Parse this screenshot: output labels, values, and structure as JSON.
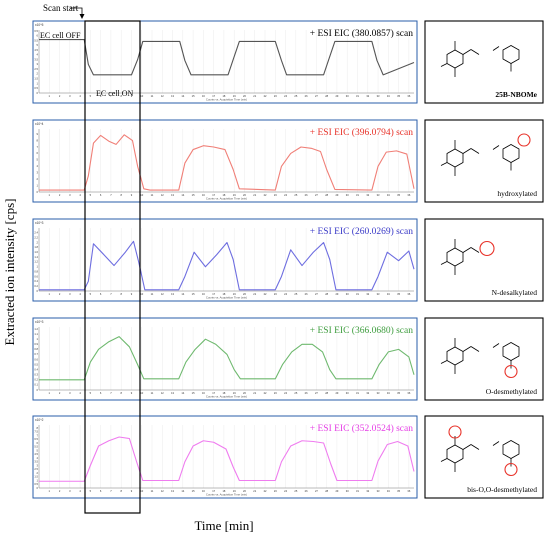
{
  "figure": {
    "annotation_scan_start": "Scan start",
    "annotation_cell_off": "EC cell OFF",
    "annotation_cell_on": "EC cell ON",
    "ylabel": "Extracted ion intensity [cps]",
    "xlabel": "Time [min]",
    "panel_axis_caption": "Counts vs. Acquisition Time (min)"
  },
  "chart_data": [
    {
      "type": "line",
      "title": "+ ESI EIC (380.0857) scan",
      "title_color": "#000000",
      "line_color": "#555555",
      "y_multiplier_label": "x10^5",
      "ylim": [
        0,
        6.6
      ],
      "yticks": [
        0,
        0.5,
        1,
        1.5,
        2,
        2.5,
        3,
        3.5,
        4,
        4.5,
        5,
        5.5,
        6,
        6.5
      ],
      "xlim": [
        0,
        36.5
      ],
      "xticks": [
        1,
        2,
        3,
        4,
        5,
        6,
        7,
        8,
        9,
        10,
        11,
        12,
        13,
        14,
        15,
        16,
        17,
        18,
        19,
        20,
        21,
        22,
        23,
        24,
        25,
        26,
        27,
        28,
        29,
        30,
        31,
        32,
        33,
        34,
        35,
        36
      ],
      "x": [
        0,
        4.4,
        4.8,
        5.3,
        9.0,
        9.6,
        10.1,
        13.7,
        14.2,
        14.8,
        18.4,
        18.9,
        19.5,
        23.0,
        23.6,
        24.1,
        27.7,
        28.2,
        28.8,
        32.4,
        32.9,
        33.5,
        36.5
      ],
      "y": [
        5.6,
        5.6,
        3.0,
        1.9,
        1.9,
        3.5,
        5.4,
        5.4,
        3.4,
        1.9,
        1.9,
        3.5,
        5.4,
        5.4,
        3.4,
        1.9,
        1.9,
        3.5,
        5.4,
        5.4,
        3.4,
        1.9,
        3.2
      ],
      "structure_label": "25B-NBOMe",
      "structure_label_bold": true,
      "structure_highlight": "none"
    },
    {
      "type": "line",
      "title": "+ ESI EIC (396.0794) scan",
      "title_color": "#e8332a",
      "line_color": "#f07f77",
      "y_multiplier_label": "x10^4",
      "ylim": [
        0,
        9.8
      ],
      "yticks": [
        0,
        1,
        2,
        3,
        4,
        5,
        6,
        7,
        8,
        9
      ],
      "xlim": [
        0,
        36.5
      ],
      "xticks": [
        1,
        2,
        3,
        4,
        5,
        6,
        7,
        8,
        9,
        10,
        11,
        12,
        13,
        14,
        15,
        16,
        17,
        18,
        19,
        20,
        21,
        22,
        23,
        24,
        25,
        26,
        27,
        28,
        29,
        30,
        31,
        32,
        33,
        34,
        35,
        36
      ],
      "x": [
        0,
        4.4,
        4.8,
        5.3,
        6.0,
        6.8,
        7.5,
        8.3,
        9.1,
        9.6,
        10.2,
        10.8,
        13.6,
        14.2,
        15.0,
        16.0,
        17.0,
        18.1,
        18.9,
        19.5,
        23.0,
        23.6,
        24.5,
        25.5,
        26.5,
        27.4,
        28.0,
        28.8,
        32.4,
        33.0,
        33.8,
        34.8,
        35.8,
        36.5
      ],
      "y": [
        0.3,
        0.3,
        2.5,
        7.6,
        8.8,
        7.9,
        7.4,
        8.9,
        8.0,
        4.0,
        0.5,
        0.3,
        0.3,
        4.5,
        6.6,
        7.2,
        7.0,
        6.6,
        3.5,
        0.5,
        0.3,
        4.0,
        6.0,
        7.0,
        6.8,
        6.3,
        3.5,
        0.4,
        0.3,
        4.0,
        6.2,
        6.4,
        5.9,
        0.5
      ],
      "structure_label": "hydroxylated",
      "structure_label_bold": false,
      "structure_highlight": "OH"
    },
    {
      "type": "line",
      "title": "+ ESI EIC (260.0269) scan",
      "title_color": "#3a3ac8",
      "line_color": "#6e6ee0",
      "y_multiplier_label": "x10^3",
      "ylim": [
        0,
        2.6
      ],
      "yticks": [
        0,
        0.2,
        0.4,
        0.6,
        0.8,
        1,
        1.2,
        1.4,
        1.6,
        1.8,
        2,
        2.2,
        2.4
      ],
      "xlim": [
        0,
        36.5
      ],
      "xticks": [
        1,
        2,
        3,
        4,
        5,
        6,
        7,
        8,
        9,
        10,
        11,
        12,
        13,
        14,
        15,
        16,
        17,
        18,
        19,
        20,
        21,
        22,
        23,
        24,
        25,
        26,
        27,
        28,
        29,
        30,
        31,
        32,
        33,
        34,
        35,
        36
      ],
      "x": [
        0,
        4.4,
        4.8,
        5.3,
        6.2,
        7.3,
        8.4,
        9.2,
        9.7,
        10.3,
        13.6,
        14.2,
        15.1,
        16.2,
        17.3,
        18.3,
        18.9,
        19.5,
        23.0,
        23.6,
        24.5,
        25.6,
        26.7,
        27.7,
        28.3,
        28.9,
        32.4,
        33.0,
        33.9,
        35.0,
        36.0,
        36.5
      ],
      "y": [
        0.05,
        0.05,
        0.4,
        1.95,
        1.55,
        1.05,
        1.6,
        2.05,
        1.2,
        0.05,
        0.05,
        0.6,
        1.6,
        1.0,
        1.5,
        2.0,
        1.3,
        0.05,
        0.05,
        0.6,
        1.7,
        1.05,
        1.6,
        2.0,
        1.3,
        0.05,
        0.05,
        0.6,
        1.6,
        1.25,
        1.65,
        0.9
      ],
      "structure_label": "N-desalkylated",
      "structure_label_bold": false,
      "structure_highlight": "NH2"
    },
    {
      "type": "line",
      "title": "+ ESI EIC (366.0680) scan",
      "title_color": "#3f9e3f",
      "line_color": "#6fb96f",
      "y_multiplier_label": "x10^3",
      "ylim": [
        0,
        1.24
      ],
      "yticks": [
        0,
        0.1,
        0.2,
        0.3,
        0.4,
        0.5,
        0.6,
        0.7,
        0.8,
        0.9,
        1,
        1.1,
        1.2
      ],
      "xlim": [
        0,
        36.5
      ],
      "xticks": [
        1,
        2,
        3,
        4,
        5,
        6,
        7,
        8,
        9,
        10,
        11,
        12,
        13,
        14,
        15,
        16,
        17,
        18,
        19,
        20,
        21,
        22,
        23,
        24,
        25,
        26,
        27,
        28,
        29,
        30,
        31,
        32,
        33,
        34,
        35,
        36
      ],
      "x": [
        0,
        4.4,
        5.0,
        5.8,
        6.8,
        7.8,
        8.8,
        9.6,
        10.2,
        13.6,
        14.3,
        15.2,
        16.2,
        17.2,
        18.3,
        19.0,
        19.6,
        23.0,
        23.7,
        24.6,
        25.6,
        26.6,
        27.6,
        28.3,
        28.9,
        32.4,
        33.1,
        34.0,
        35.0,
        36.0,
        36.5
      ],
      "y": [
        0.2,
        0.2,
        0.55,
        0.8,
        0.95,
        1.05,
        0.85,
        0.5,
        0.22,
        0.22,
        0.55,
        0.8,
        1.0,
        0.9,
        0.7,
        0.4,
        0.22,
        0.22,
        0.5,
        0.75,
        0.9,
        0.9,
        0.75,
        0.4,
        0.22,
        0.22,
        0.5,
        0.75,
        0.8,
        0.65,
        0.3
      ],
      "structure_label": "O-desmethylated",
      "structure_label_bold": false,
      "structure_highlight": "OH"
    },
    {
      "type": "line",
      "title": "+ ESI EIC (352.0524) scan",
      "title_color": "#e63fe6",
      "line_color": "#ef7cef",
      "y_multiplier_label": "x10^2",
      "ylim": [
        0,
        8.4
      ],
      "yticks": [
        0,
        0.5,
        1,
        1.5,
        2,
        2.5,
        3,
        3.5,
        4,
        4.5,
        5,
        5.5,
        6,
        6.5,
        7,
        7.5,
        8
      ],
      "xlim": [
        0,
        36.5
      ],
      "xticks": [
        1,
        2,
        3,
        4,
        5,
        6,
        7,
        8,
        9,
        10,
        11,
        12,
        13,
        14,
        15,
        16,
        17,
        18,
        19,
        20,
        21,
        22,
        23,
        24,
        25,
        26,
        27,
        28,
        29,
        30,
        31,
        32,
        33,
        34,
        35,
        36
      ],
      "x": [
        0,
        4.4,
        5.0,
        5.8,
        6.8,
        7.8,
        8.8,
        9.5,
        10.1,
        13.6,
        14.2,
        15.0,
        16.0,
        17.0,
        18.2,
        18.9,
        19.5,
        23.0,
        23.6,
        24.5,
        25.6,
        26.7,
        27.7,
        28.4,
        29.0,
        32.4,
        33.0,
        33.9,
        34.9,
        35.9,
        36.5
      ],
      "y": [
        0.9,
        0.9,
        3.0,
        5.6,
        6.3,
        6.8,
        6.6,
        3.5,
        1.0,
        1.0,
        3.5,
        5.6,
        6.3,
        6.1,
        5.2,
        2.8,
        1.0,
        1.0,
        3.5,
        5.6,
        6.3,
        6.2,
        6.0,
        3.2,
        1.0,
        1.0,
        3.6,
        5.8,
        6.2,
        5.6,
        2.2
      ],
      "structure_label": "bis-O,O-desmethylated",
      "structure_label_bold": false,
      "structure_highlight": "OH,OH"
    }
  ]
}
